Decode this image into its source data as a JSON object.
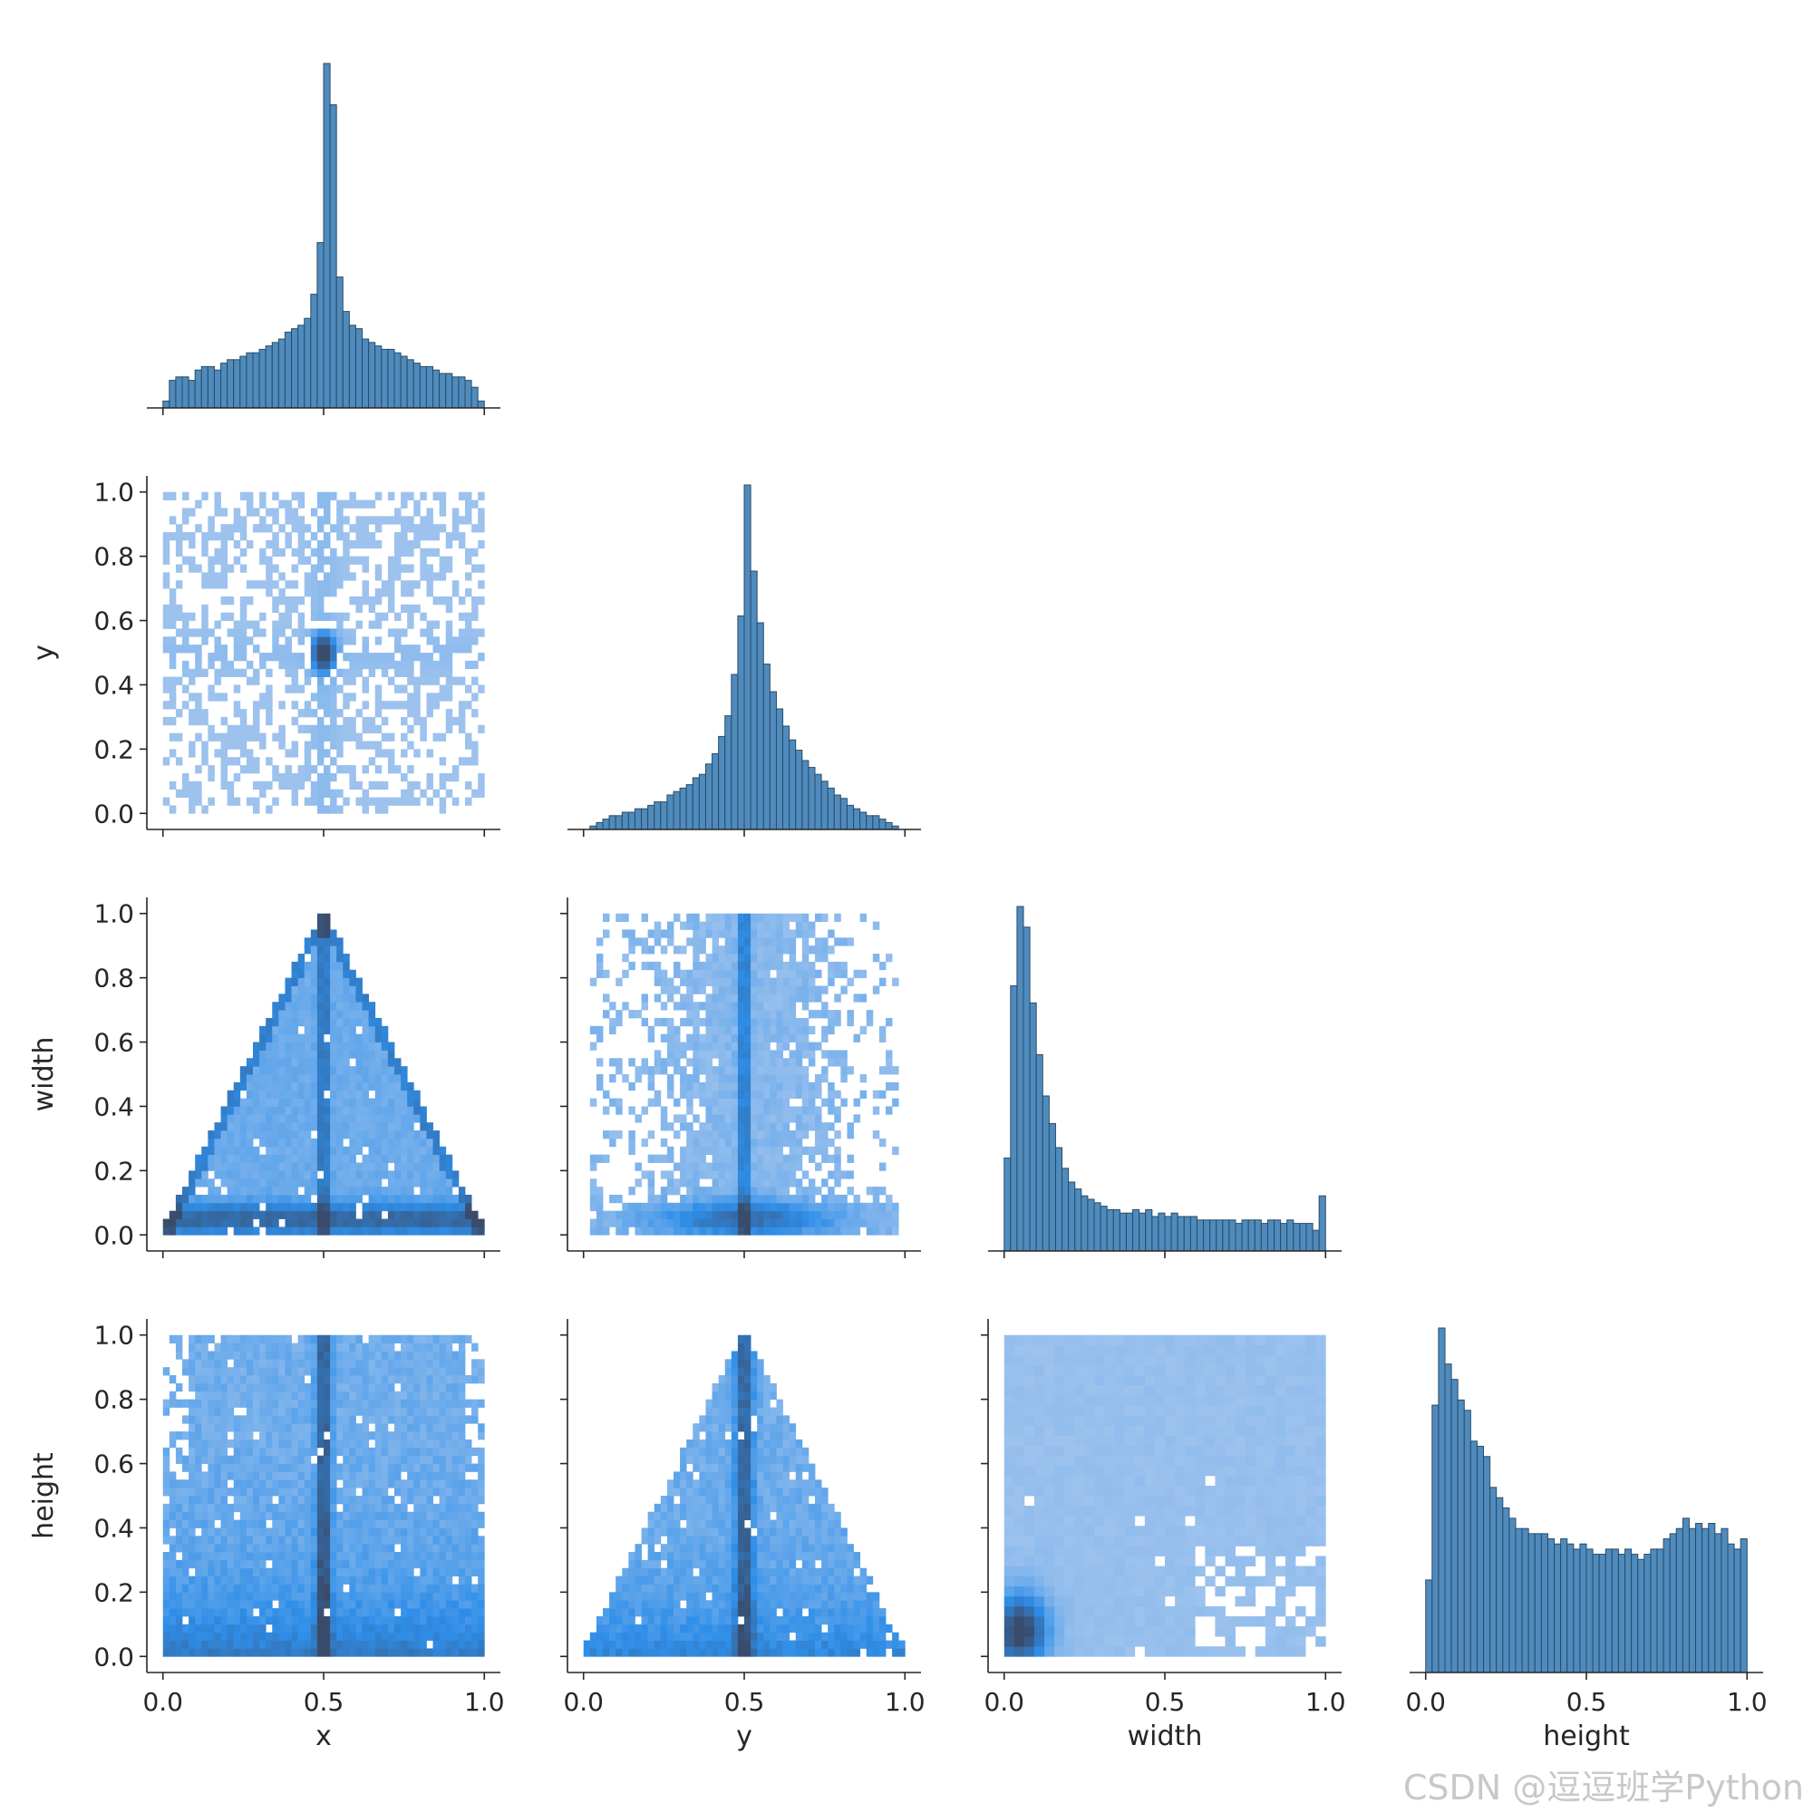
{
  "watermark": "CSDN @逗逗班学Python",
  "colors": {
    "hist_fill": "#4f8bbd",
    "hist_edge": "#2b4b66",
    "heat_light": "#a9c8ee",
    "heat_mid": "#2f8ee8",
    "heat_dark": "#3a4c6c",
    "axis": "#262626"
  },
  "chart_data": {
    "type": "pairplot",
    "variables": [
      "x",
      "y",
      "width",
      "height"
    ],
    "corner": true,
    "grid": false,
    "axis_range": [
      0,
      1
    ],
    "tick_labels": [
      "0.0",
      "0.2",
      "0.4",
      "0.6",
      "0.8",
      "1.0"
    ],
    "xtick_labels": [
      "0.0",
      "0.5",
      "1.0"
    ],
    "diagonal": [
      {
        "variable": "x",
        "type": "histogram",
        "bins": 50,
        "counts": [
          2,
          8,
          9,
          9,
          8,
          11,
          12,
          12,
          11,
          13,
          14,
          14,
          15,
          16,
          16,
          17,
          18,
          19,
          20,
          22,
          23,
          24,
          26,
          33,
          48,
          100,
          88,
          38,
          28,
          24,
          23,
          20,
          19,
          18,
          17,
          17,
          16,
          15,
          14,
          13,
          12,
          12,
          11,
          10,
          10,
          9,
          9,
          8,
          6,
          2
        ]
      },
      {
        "variable": "y",
        "type": "histogram",
        "bins": 50,
        "counts": [
          0,
          1,
          2,
          3,
          4,
          4,
          5,
          5,
          6,
          6,
          7,
          8,
          8,
          10,
          11,
          12,
          13,
          15,
          16,
          19,
          22,
          27,
          33,
          45,
          62,
          100,
          75,
          60,
          48,
          40,
          35,
          30,
          26,
          23,
          20,
          18,
          16,
          14,
          12,
          10,
          9,
          7,
          6,
          5,
          4,
          4,
          3,
          2,
          1,
          0
        ]
      },
      {
        "variable": "width",
        "type": "histogram",
        "bins": 50,
        "counts": [
          27,
          77,
          100,
          94,
          72,
          57,
          45,
          37,
          30,
          24,
          20,
          18,
          16,
          15,
          14,
          13,
          12,
          12,
          11,
          11,
          12,
          11,
          12,
          10,
          11,
          10,
          11,
          10,
          10,
          10,
          9,
          9,
          9,
          9,
          9,
          9,
          8,
          9,
          9,
          9,
          8,
          9,
          9,
          8,
          9,
          8,
          8,
          8,
          6,
          16
        ]
      },
      {
        "variable": "height",
        "type": "histogram",
        "bins": 50,
        "counts": [
          18,
          52,
          67,
          60,
          57,
          53,
          51,
          45,
          44,
          42,
          36,
          34,
          32,
          30,
          28,
          28,
          27,
          27,
          27,
          26,
          25,
          26,
          25,
          24,
          25,
          24,
          23,
          23,
          24,
          24,
          23,
          24,
          23,
          22,
          23,
          24,
          24,
          26,
          27,
          28,
          30,
          28,
          29,
          28,
          29,
          27,
          28,
          25,
          24,
          26
        ]
      }
    ],
    "off_diagonal": [
      {
        "x": "x",
        "y": "y",
        "type": "2d-histogram",
        "pattern": "scattered light cells over full square with dense dark core at (0.5, 0.5) and faint cross along x=0.5 and y=0.5"
      },
      {
        "x": "x",
        "y": "width",
        "type": "2d-histogram",
        "pattern": "triangle bounded by width <= 2*min(x, 1-x), dark band at x=0.5 and near width=0.05"
      },
      {
        "x": "y",
        "y": "width",
        "type": "2d-histogram",
        "pattern": "sparse cells over full range, dark vertical band at y=0.5, dense bottom band near width=0.05"
      },
      {
        "x": "x",
        "y": "height",
        "type": "2d-histogram",
        "pattern": "fills full square, dark vertical band at x=0.5, denser toward height=0"
      },
      {
        "x": "y",
        "y": "height",
        "type": "2d-histogram",
        "pattern": "triangle bounded by height <= 2*min(y, 1-y), dark band at y=0.5"
      },
      {
        "x": "width",
        "y": "height",
        "type": "2d-histogram",
        "pattern": "nearly uniform light fill with dark concentration near (0.05, 0.05) and gaps in lower-right corner"
      }
    ],
    "xlabels": [
      "x",
      "y",
      "width",
      "height"
    ],
    "ylabels": [
      "",
      "y",
      "width",
      "height"
    ]
  }
}
